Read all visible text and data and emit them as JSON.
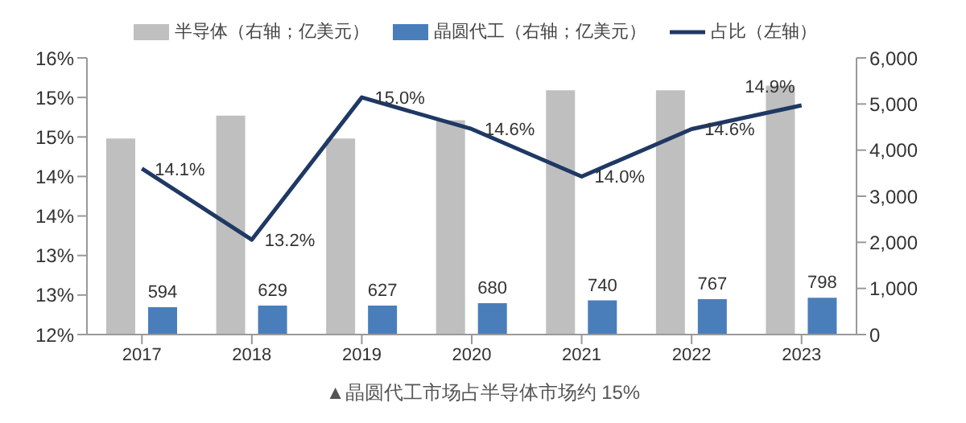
{
  "chart_data": {
    "type": "bar",
    "categories": [
      "2017",
      "2018",
      "2019",
      "2020",
      "2021",
      "2022",
      "2023"
    ],
    "series": [
      {
        "name": "半导体（右轴；亿美元）",
        "axis": "y2",
        "color": "#bfbfbf",
        "values": [
          4250,
          4750,
          4250,
          4650,
          5300,
          5300,
          5400
        ]
      },
      {
        "name": "晶圆代工（右轴；亿美元）",
        "axis": "y2",
        "color": "#4a7ebb",
        "values": [
          594,
          629,
          627,
          680,
          740,
          767,
          798
        ],
        "value_labels": [
          "594",
          "629",
          "627",
          "680",
          "740",
          "767",
          "798"
        ]
      },
      {
        "name": "占比（左轴）",
        "type": "line",
        "color": "#1f3864",
        "values": [
          14.1,
          13.2,
          15.0,
          14.6,
          14.0,
          14.6,
          14.9
        ],
        "value_labels": [
          "14.1%",
          "13.2%",
          "15.0%",
          "14.6%",
          "14.0%",
          "14.6%",
          "14.9%"
        ]
      }
    ],
    "ylim": [
      12,
      15.5
    ],
    "yticks": [
      {
        "value": 12,
        "label": "12%"
      },
      {
        "value": 12.5,
        "label": "13%"
      },
      {
        "value": 13,
        "label": "13%"
      },
      {
        "value": 13.5,
        "label": "14%"
      },
      {
        "value": 14,
        "label": "14%"
      },
      {
        "value": 14.5,
        "label": "15%"
      },
      {
        "value": 15,
        "label": "15%"
      },
      {
        "value": 15.5,
        "label": "16%"
      }
    ],
    "y2lim": [
      0,
      6000
    ],
    "y2ticks": [
      {
        "value": 0,
        "label": "0"
      },
      {
        "value": 1000,
        "label": "1,000"
      },
      {
        "value": 2000,
        "label": "2,000"
      },
      {
        "value": 3000,
        "label": "3,000"
      },
      {
        "value": 4000,
        "label": "4,000"
      },
      {
        "value": 5000,
        "label": "5,000"
      },
      {
        "value": 6000,
        "label": "6,000"
      }
    ],
    "legend": "top",
    "grid": false,
    "marker": "none",
    "annotations": [
      "▲晶圆代工市场占半导体市场约 15%"
    ]
  }
}
